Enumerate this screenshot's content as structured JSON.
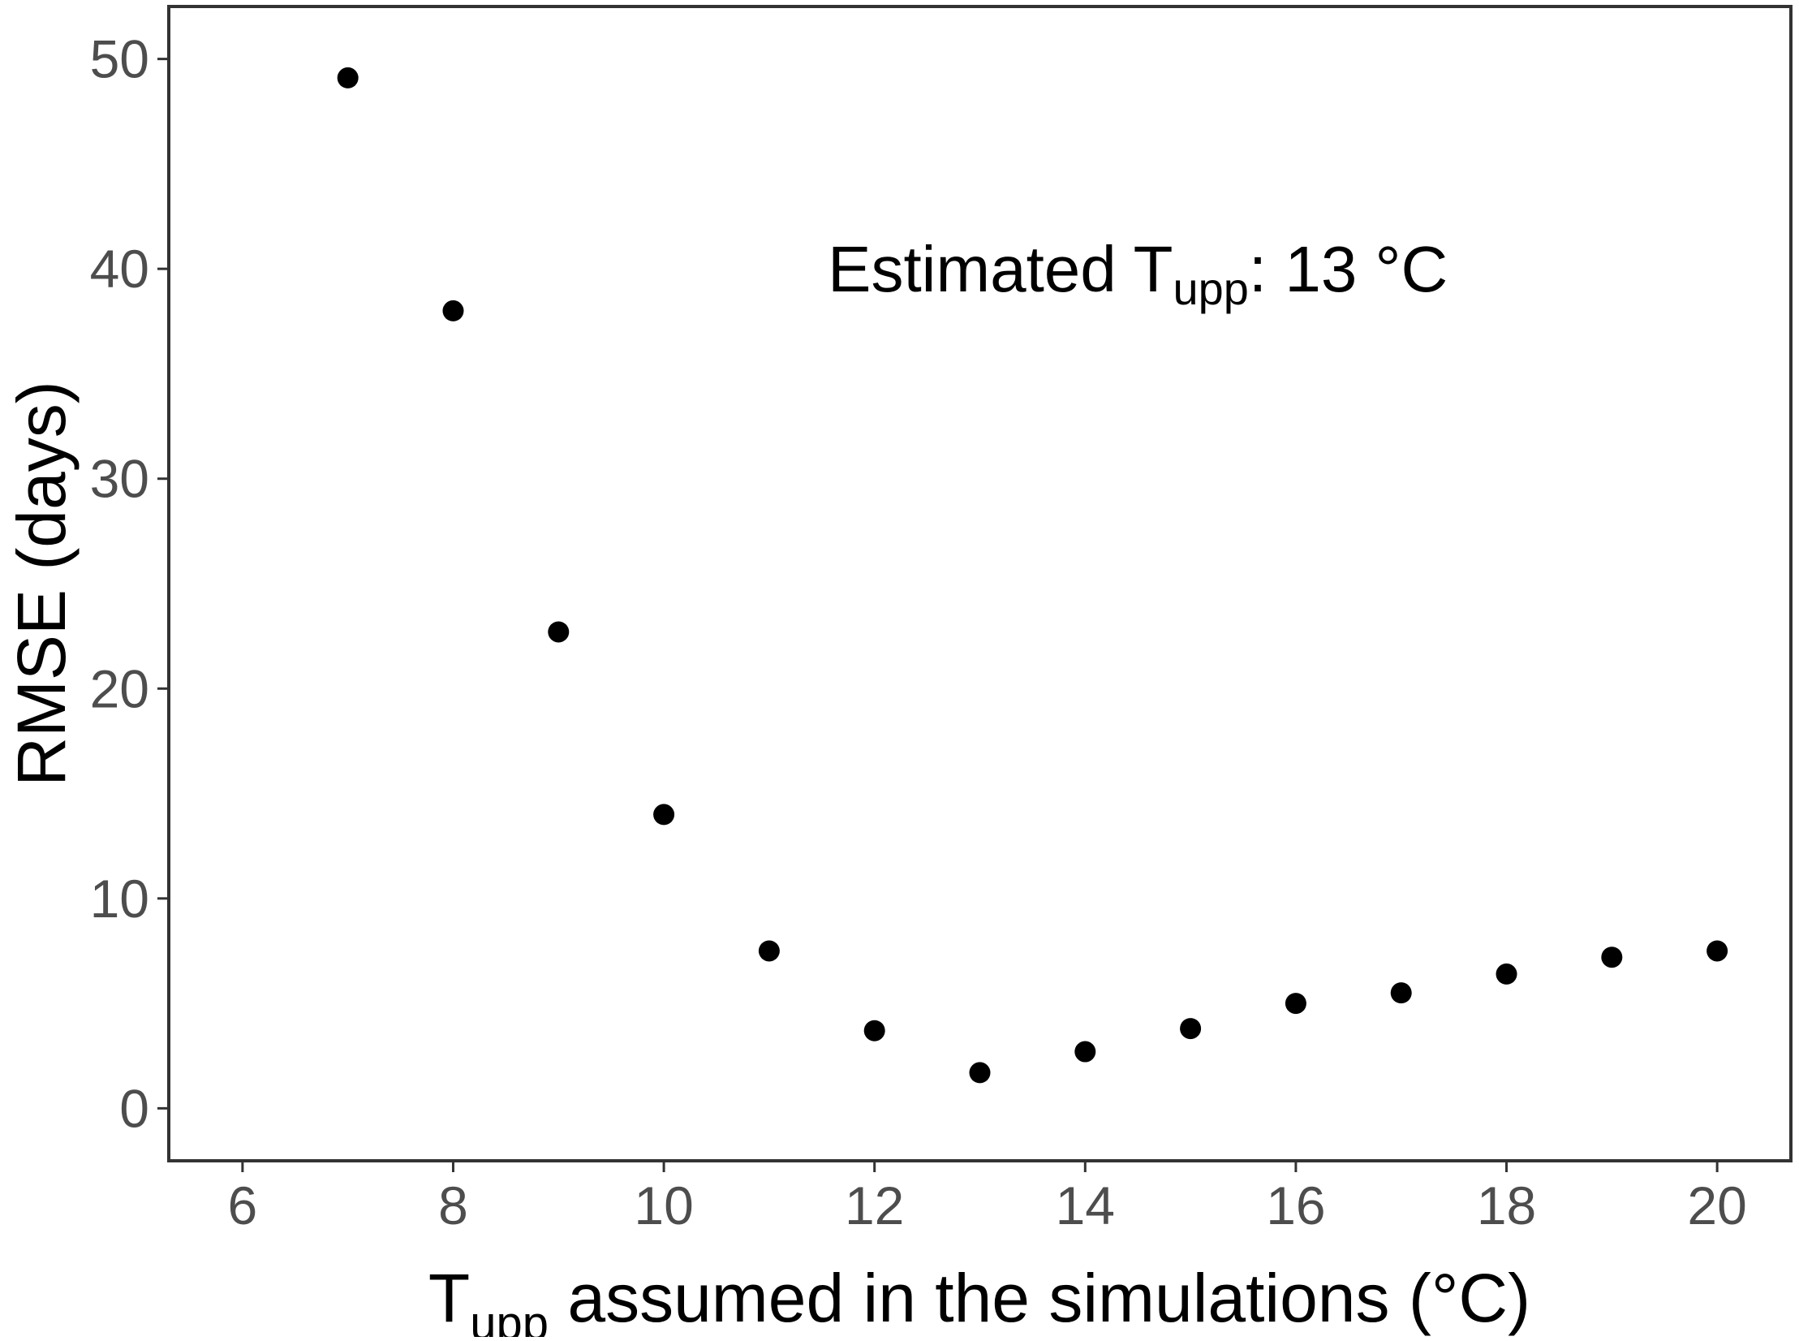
{
  "chart_data": {
    "type": "scatter",
    "x": [
      7,
      8,
      9,
      10,
      11,
      12,
      13,
      14,
      15,
      16,
      17,
      18,
      19,
      20
    ],
    "y": [
      49.1,
      38.0,
      22.7,
      14.0,
      7.5,
      3.7,
      1.7,
      2.7,
      3.8,
      5.0,
      5.5,
      6.4,
      7.2,
      7.5
    ],
    "title": "",
    "xlabel": {
      "main": "T",
      "sub": "upp",
      "rest": " assumed in the simulations (°C)"
    },
    "ylabel": "RMSE (days)",
    "xlim": [
      5.3,
      20.7
    ],
    "ylim": [
      -2.5,
      52.5
    ],
    "xticks": [
      6,
      8,
      10,
      12,
      14,
      16,
      18,
      20
    ],
    "yticks": [
      0,
      10,
      20,
      30,
      40,
      50
    ],
    "grid": false,
    "legend": "none",
    "annotation": {
      "prefix": "Estimated T",
      "sub": "upp",
      "suffix": ": 13 °C",
      "x": 14.5,
      "y": 40
    },
    "colors": {
      "point": "#000000",
      "frame": "#333333",
      "tick_label": "#4d4d4d"
    }
  }
}
